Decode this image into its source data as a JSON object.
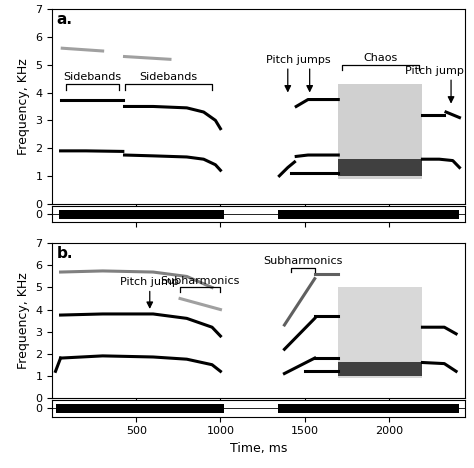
{
  "chart_data": [
    {
      "type": "line",
      "title": "a.",
      "ylabel": "Frequency, KHz",
      "tick_labels": "y",
      "xlim": [
        0,
        2450
      ],
      "xticks": [
        500,
        1000,
        1500,
        2000
      ],
      "ylim": [
        0,
        7
      ],
      "yticks": [
        0,
        1,
        2,
        3,
        4,
        5,
        6,
        7
      ],
      "series": [
        {
          "color": "#000000",
          "x": [
            50,
            200,
            420
          ],
          "values": [
            1.9,
            1.9,
            1.88
          ]
        },
        {
          "color": "#000000",
          "x": [
            50,
            200,
            420
          ],
          "values": [
            3.75,
            3.75,
            3.75
          ]
        },
        {
          "color": "#a0a0a0",
          "x": [
            60,
            300
          ],
          "values": [
            5.6,
            5.5
          ]
        },
        {
          "color": "#000000",
          "x": [
            430,
            600,
            800,
            900,
            970,
            1000
          ],
          "values": [
            1.75,
            1.72,
            1.68,
            1.6,
            1.4,
            1.2
          ]
        },
        {
          "color": "#000000",
          "x": [
            430,
            600,
            800,
            900,
            970,
            1000
          ],
          "values": [
            3.5,
            3.5,
            3.45,
            3.3,
            3.0,
            2.7
          ]
        },
        {
          "color": "#a0a0a0",
          "x": [
            430,
            700
          ],
          "values": [
            5.3,
            5.2
          ]
        },
        {
          "color": "#000000",
          "x": [
            1350,
            1400,
            1440
          ],
          "values": [
            1.0,
            1.3,
            1.5
          ]
        },
        {
          "color": "#000000",
          "x": [
            1450,
            1520,
            1700
          ],
          "values": [
            1.7,
            1.75,
            1.75
          ]
        },
        {
          "color": "#000000",
          "x": [
            1450,
            1520,
            1700
          ],
          "values": [
            3.5,
            3.75,
            3.75
          ]
        },
        {
          "color": "#000000",
          "x": [
            1420,
            1700
          ],
          "values": [
            1.1,
            1.1
          ]
        },
        {
          "color": "#000000",
          "x": [
            2200,
            2300,
            2380,
            2420
          ],
          "values": [
            1.6,
            1.6,
            1.55,
            1.3
          ]
        },
        {
          "color": "#000000",
          "x": [
            2200,
            2330
          ],
          "values": [
            3.2,
            3.2
          ]
        },
        {
          "color": "#000000",
          "x": [
            2340,
            2420
          ],
          "values": [
            3.3,
            3.1
          ]
        }
      ],
      "noise_regions": [
        {
          "x": [
            1700,
            2200
          ],
          "y": [
            0.9,
            4.3
          ],
          "color": "#d0d0d0"
        },
        {
          "x": [
            1700,
            2200
          ],
          "y": [
            1.0,
            1.6
          ],
          "color": "#404040"
        }
      ],
      "annotations": [
        {
          "kind": "bracket",
          "text": "Sidebands",
          "x": [
            80,
            400
          ],
          "y": 4.3
        },
        {
          "kind": "bracket",
          "text": "Sidebands",
          "x": [
            430,
            950
          ],
          "y": 4.3
        },
        {
          "kind": "bracket",
          "text": "Chaos",
          "x": [
            1720,
            2180
          ],
          "y": 5.0
        },
        {
          "kind": "arrow",
          "text": "Pitch jumps",
          "points": [
            [
              1400,
              3.9
            ],
            [
              1530,
              3.9
            ]
          ]
        },
        {
          "kind": "arrow",
          "text": "Pitch jump",
          "points": [
            [
              2370,
              3.5
            ]
          ]
        }
      ],
      "waveform": {
        "segments": [
          [
            40,
            1020
          ],
          [
            1340,
            2420
          ]
        ],
        "ylim": [
          -1,
          1
        ],
        "yticks": [
          0
        ]
      }
    },
    {
      "type": "line",
      "title": "b.",
      "ylabel": "Frequency, KHz",
      "xlabel": "Time, ms",
      "xlim": [
        0,
        2450
      ],
      "xticks": [
        500,
        1000,
        1500,
        2000
      ],
      "ylim": [
        0,
        7
      ],
      "yticks": [
        0,
        1,
        2,
        3,
        4,
        5,
        6,
        7
      ],
      "series": [
        {
          "color": "#000000",
          "x": [
            20,
            50
          ],
          "values": [
            1.2,
            1.8
          ]
        },
        {
          "color": "#000000",
          "x": [
            50,
            300,
            600,
            800,
            950,
            1000
          ],
          "values": [
            1.8,
            1.9,
            1.85,
            1.75,
            1.5,
            1.2
          ]
        },
        {
          "color": "#000000",
          "x": [
            50,
            300,
            600,
            800,
            950,
            1000
          ],
          "values": [
            3.75,
            3.8,
            3.8,
            3.6,
            3.2,
            2.8
          ]
        },
        {
          "color": "#808080",
          "x": [
            50,
            300,
            600,
            800,
            950
          ],
          "values": [
            5.7,
            5.75,
            5.7,
            5.5,
            5.0
          ]
        },
        {
          "color": "#a0a0a0",
          "x": [
            760,
            1000
          ],
          "values": [
            4.5,
            4.0
          ]
        },
        {
          "color": "#000000",
          "x": [
            1380,
            1560
          ],
          "values": [
            1.1,
            1.8
          ]
        },
        {
          "color": "#000000",
          "x": [
            1380,
            1560
          ],
          "values": [
            2.2,
            3.6
          ]
        },
        {
          "color": "#606060",
          "x": [
            1380,
            1560
          ],
          "values": [
            3.3,
            5.4
          ]
        },
        {
          "color": "#000000",
          "x": [
            1560,
            1700
          ],
          "values": [
            1.8,
            1.8
          ]
        },
        {
          "color": "#000000",
          "x": [
            1560,
            1700
          ],
          "values": [
            3.7,
            3.7
          ]
        },
        {
          "color": "#606060",
          "x": [
            1560,
            1700
          ],
          "values": [
            5.6,
            5.6
          ]
        },
        {
          "color": "#000000",
          "x": [
            1500,
            1700
          ],
          "values": [
            1.2,
            1.2
          ]
        },
        {
          "color": "#000000",
          "x": [
            2200,
            2330,
            2400
          ],
          "values": [
            1.6,
            1.55,
            1.2
          ]
        },
        {
          "color": "#000000",
          "x": [
            2200,
            2330,
            2400
          ],
          "values": [
            3.2,
            3.2,
            2.9
          ]
        }
      ],
      "noise_regions": [
        {
          "x": [
            1700,
            2200
          ],
          "y": [
            0.9,
            5.0
          ],
          "color": "#d8d8d8"
        },
        {
          "x": [
            1700,
            2200
          ],
          "y": [
            1.0,
            1.6
          ],
          "color": "#404040"
        }
      ],
      "annotations": [
        {
          "kind": "arrow",
          "text": "Pitch jump",
          "points": [
            [
              580,
              3.9
            ]
          ]
        },
        {
          "kind": "bracket",
          "text": "Subharmonics",
          "x": [
            760,
            1000
          ],
          "y": 5.0
        },
        {
          "kind": "bracket",
          "text": "Subharmonics",
          "x": [
            1420,
            1560
          ],
          "y": 5.9
        }
      ],
      "waveform": {
        "segments": [
          [
            20,
            1020
          ],
          [
            1340,
            2420
          ]
        ],
        "ylim": [
          -1,
          1
        ],
        "yticks": [
          0
        ]
      }
    }
  ]
}
